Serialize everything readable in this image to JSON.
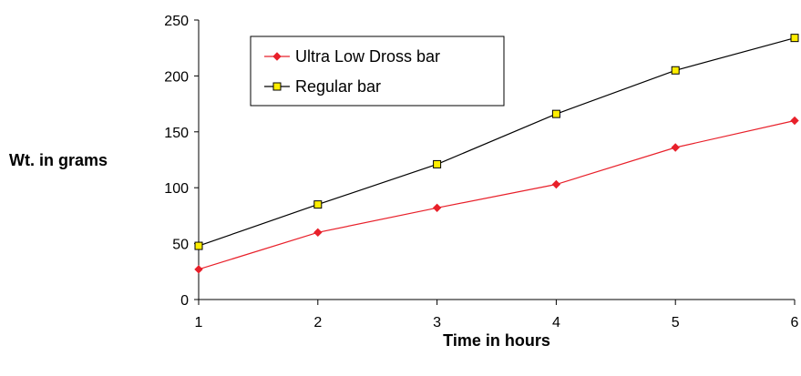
{
  "chart_data": {
    "type": "line",
    "x": [
      1,
      2,
      3,
      4,
      5,
      6
    ],
    "xlim": [
      1,
      6
    ],
    "ylim": [
      0,
      250
    ],
    "x_ticks": [
      "1",
      "2",
      "3",
      "4",
      "5",
      "6"
    ],
    "y_ticks": [
      "0",
      "50",
      "100",
      "150",
      "200",
      "250"
    ],
    "xlabel": "Time in hours",
    "ylabel": "Wt. in grams",
    "grid": false,
    "legend_position": "top-left",
    "series": [
      {
        "name": "Ultra Low Dross bar",
        "values": [
          27,
          60,
          82,
          103,
          136,
          160
        ],
        "color": "#e8202a",
        "marker": "diamond"
      },
      {
        "name": "Regular bar",
        "values": [
          48,
          85,
          121,
          166,
          205,
          234
        ],
        "color": "#000000",
        "marker": "square",
        "marker_fill": "#ffee00"
      }
    ]
  }
}
